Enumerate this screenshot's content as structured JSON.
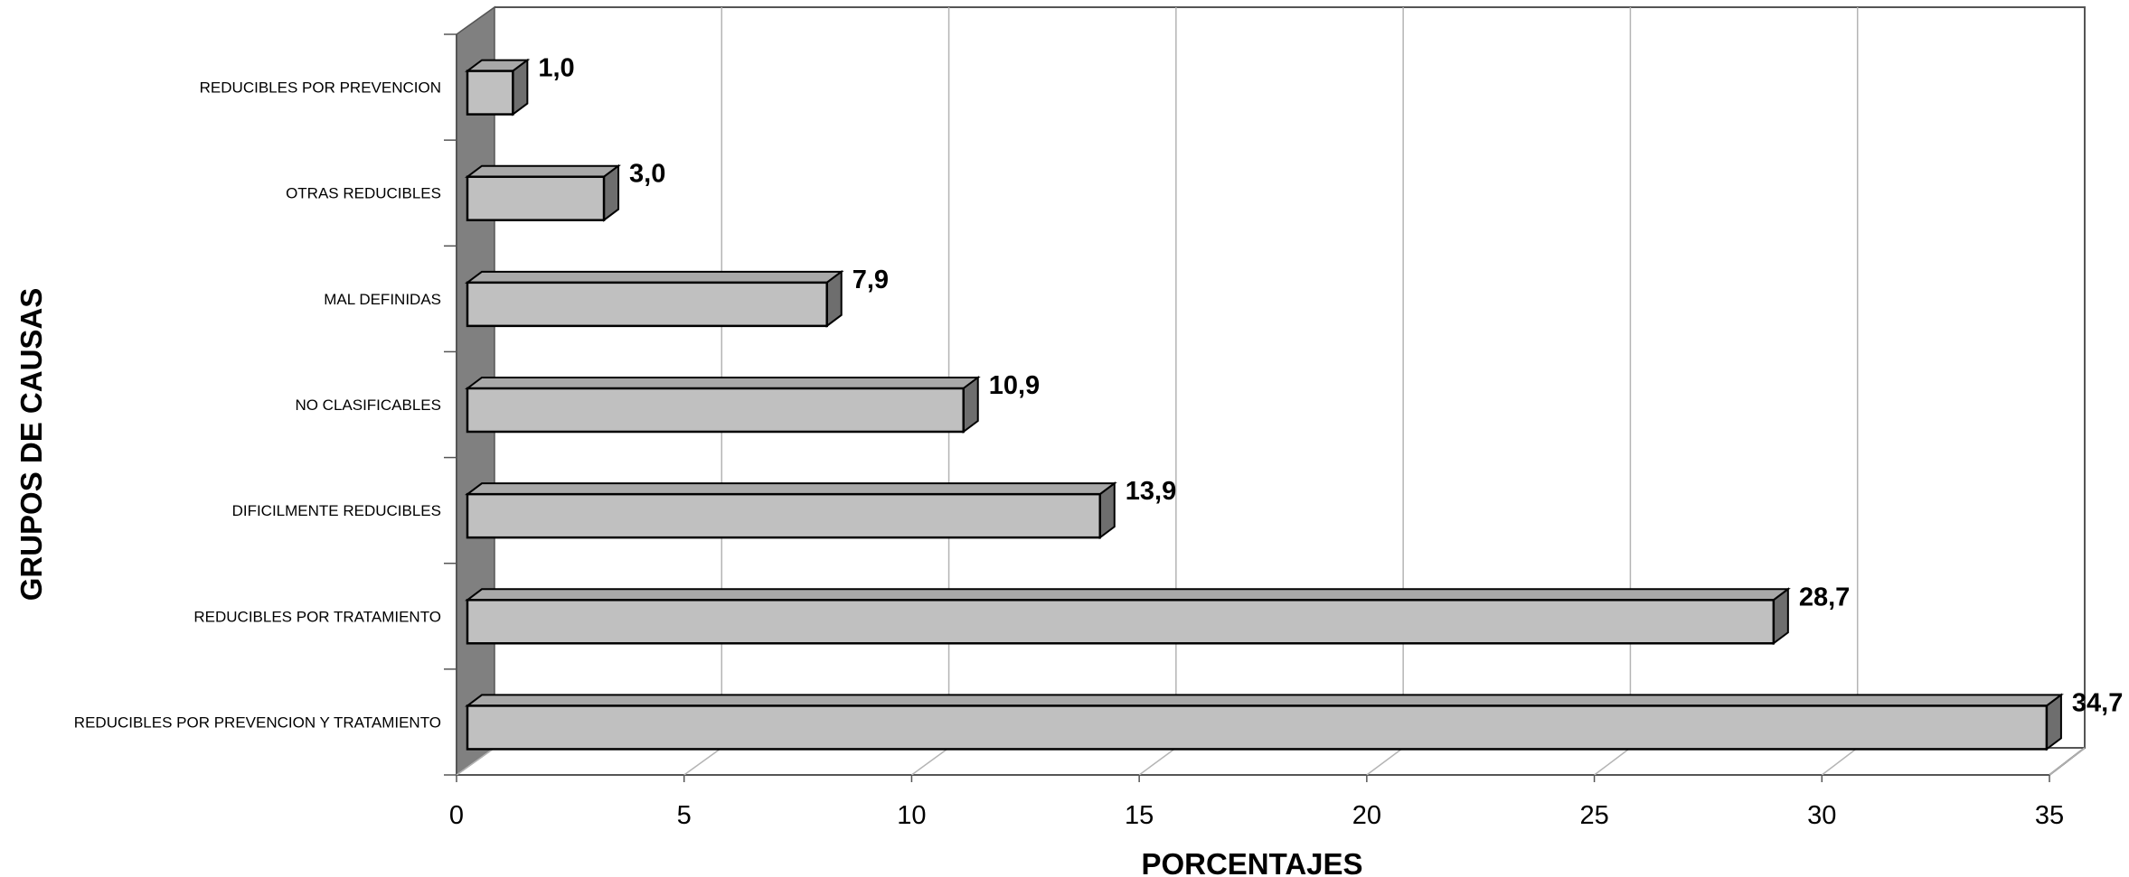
{
  "chart_data": {
    "type": "bar",
    "orientation": "horizontal",
    "style": "3d",
    "xlabel": "PORCENTAJES",
    "ylabel": "GRUPOS DE CAUSAS",
    "categories": [
      "REDUCIBLES POR PREVENCION",
      "OTRAS REDUCIBLES",
      "MAL DEFINIDAS",
      "NO CLASIFICABLES",
      "DIFICILMENTE REDUCIBLES",
      "REDUCIBLES POR TRATAMIENTO",
      "REDUCIBLES POR PREVENCION Y TRATAMIENTO"
    ],
    "values": [
      1.0,
      3.0,
      7.9,
      10.9,
      13.9,
      28.7,
      34.7
    ],
    "value_labels": [
      "1,0",
      "3,0",
      "7,9",
      "10,9",
      "13,9",
      "28,7",
      "34,7"
    ],
    "xlim": [
      0,
      35
    ],
    "xticks": [
      0,
      5,
      10,
      15,
      20,
      25,
      30,
      35
    ],
    "xtick_labels": [
      "0",
      "5",
      "10",
      "15",
      "20",
      "25",
      "30",
      "35"
    ],
    "grid": true,
    "legend": "none",
    "colors": {
      "bar_front": "#c0c0c0",
      "bar_top": "#a8a8a8",
      "bar_side": "#6e6e6e",
      "side_wall": "#808080",
      "gridline": "#b4b4b4",
      "axis": "#555555"
    }
  }
}
